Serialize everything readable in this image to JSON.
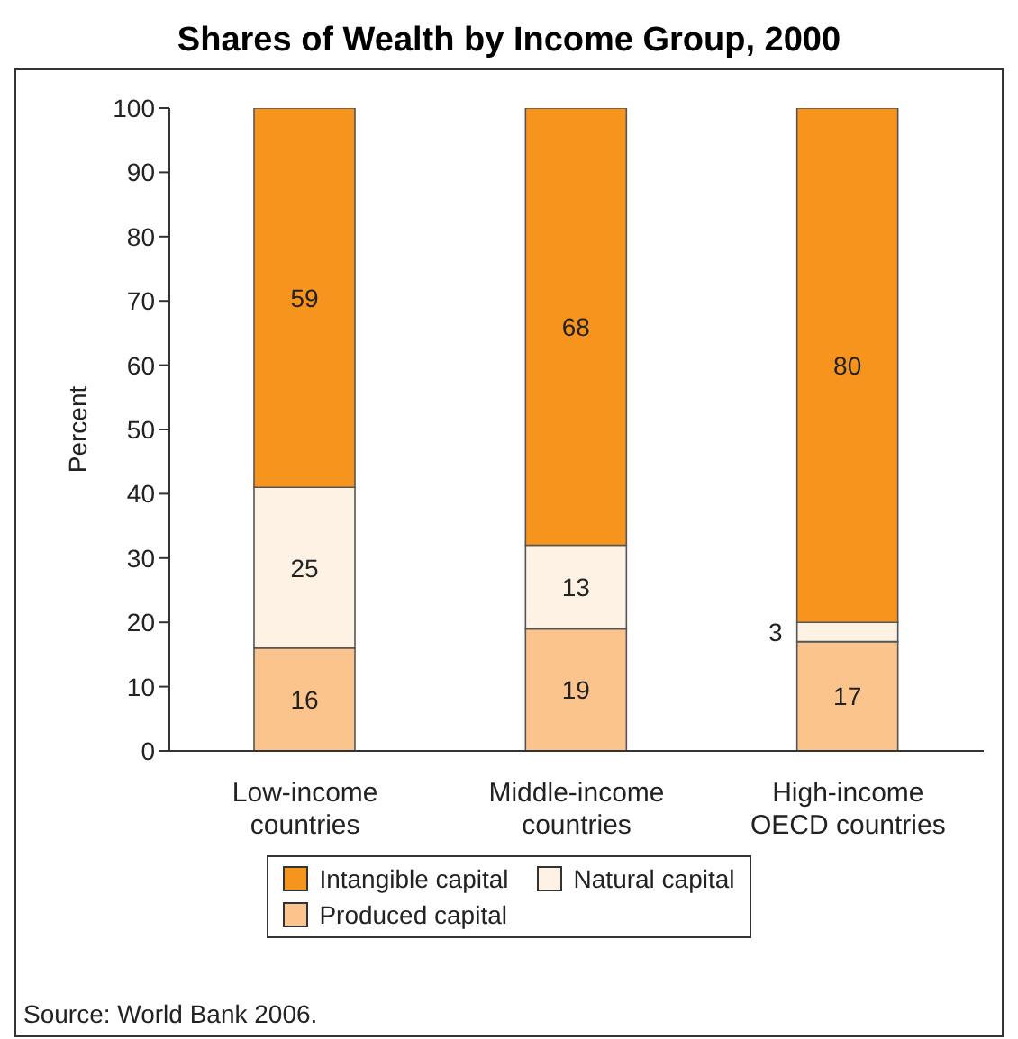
{
  "chart_data": {
    "type": "bar",
    "title": "Shares of Wealth by Income Group, 2000",
    "ylabel": "Percent",
    "categories": [
      "Low-income countries",
      "Middle-income countries",
      "High-income OECD countries"
    ],
    "stacked": true,
    "series": [
      {
        "name": "Produced capital",
        "color": "#fbc48c",
        "values": [
          16,
          19,
          17
        ]
      },
      {
        "name": "Natural capital",
        "color": "#fdf2e3",
        "values": [
          25,
          13,
          3
        ]
      },
      {
        "name": "Intangible capital",
        "color": "#f7941d",
        "values": [
          59,
          68,
          80
        ]
      }
    ],
    "ylim": [
      0,
      100
    ],
    "yticks": [
      0,
      10,
      20,
      30,
      40,
      50,
      60,
      70,
      80,
      90,
      100
    ],
    "data_labels": true,
    "legend": "bottom",
    "grid": false,
    "annotations": [
      "Source: World Bank 2006."
    ]
  }
}
